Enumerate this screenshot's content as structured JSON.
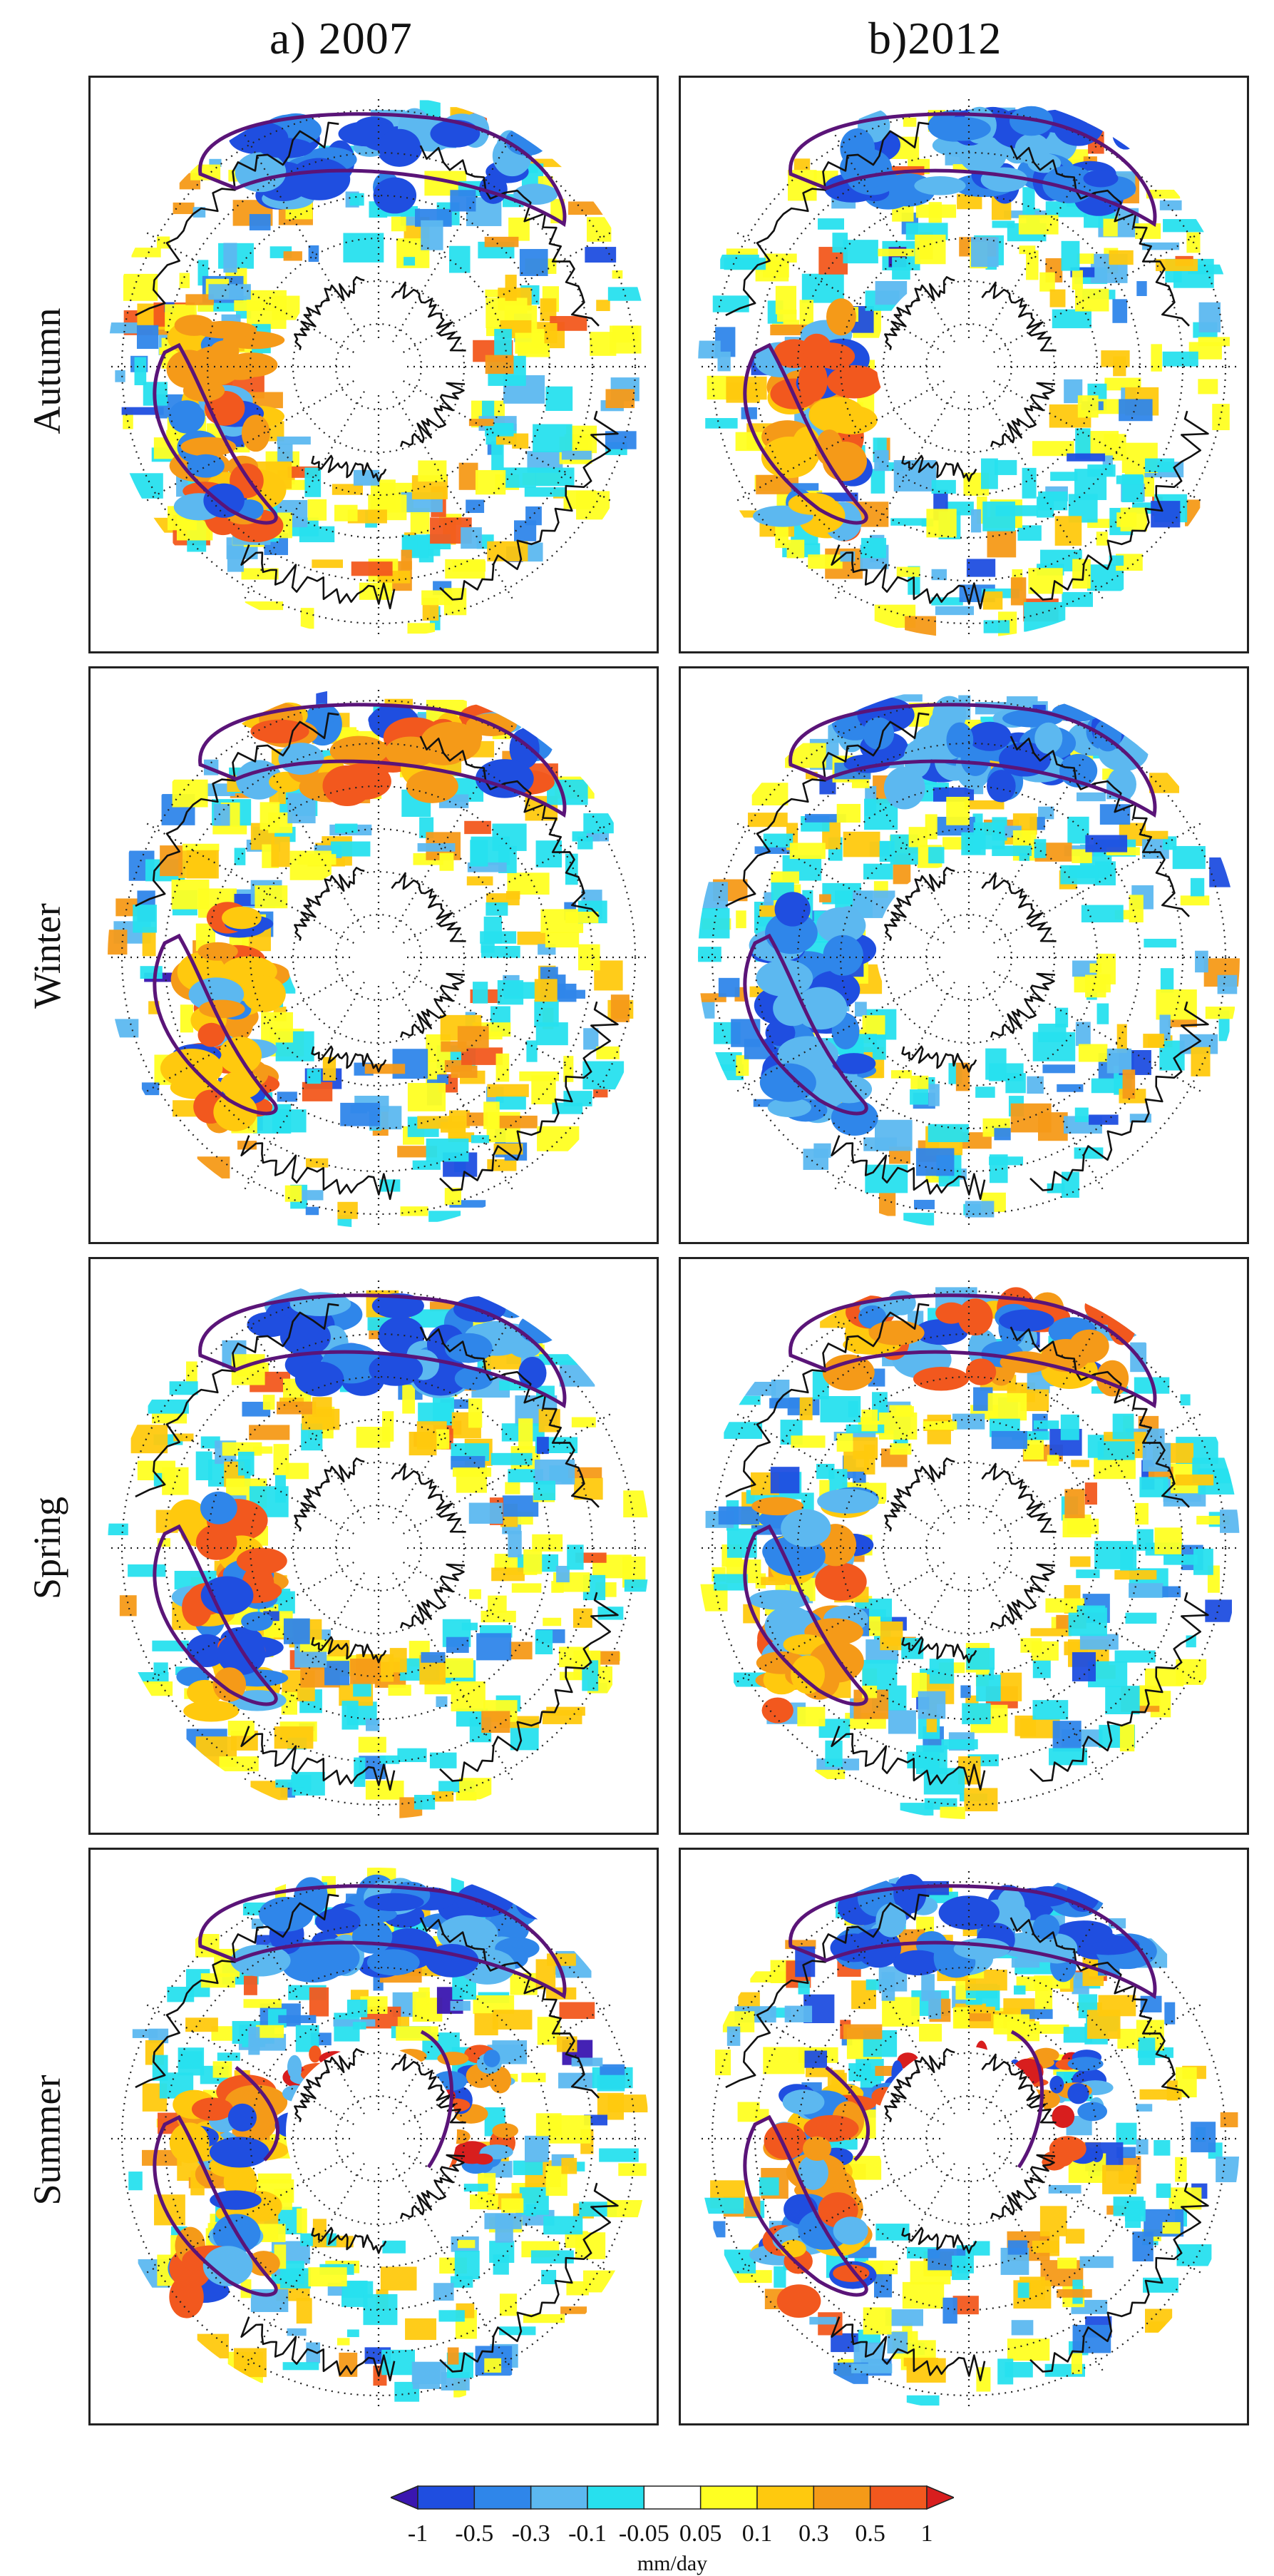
{
  "columns": [
    {
      "title": "a) 2007"
    },
    {
      "title": "b)2012"
    }
  ],
  "rows": [
    {
      "season": "Autumn"
    },
    {
      "season": "Winter"
    },
    {
      "season": "Spring"
    },
    {
      "season": "Summer"
    }
  ],
  "colorbar": {
    "ticks": [
      "-1",
      "-0.5",
      "-0.3",
      "-0.1",
      "-0.05",
      "0.05",
      "0.1",
      "0.3",
      "0.5",
      "1"
    ],
    "units": "mm/day",
    "colors": [
      "#3a16b0",
      "#1f4ee0",
      "#2f86ea",
      "#5cb8f0",
      "#27e0ee",
      "#ffffff",
      "#ffff22",
      "#ffc90e",
      "#f59a18",
      "#f2581e",
      "#d81e1e"
    ]
  },
  "map_style": {
    "contour_color": "#5a1478",
    "coast_color": "#111111",
    "grid_color": "#222222"
  }
}
